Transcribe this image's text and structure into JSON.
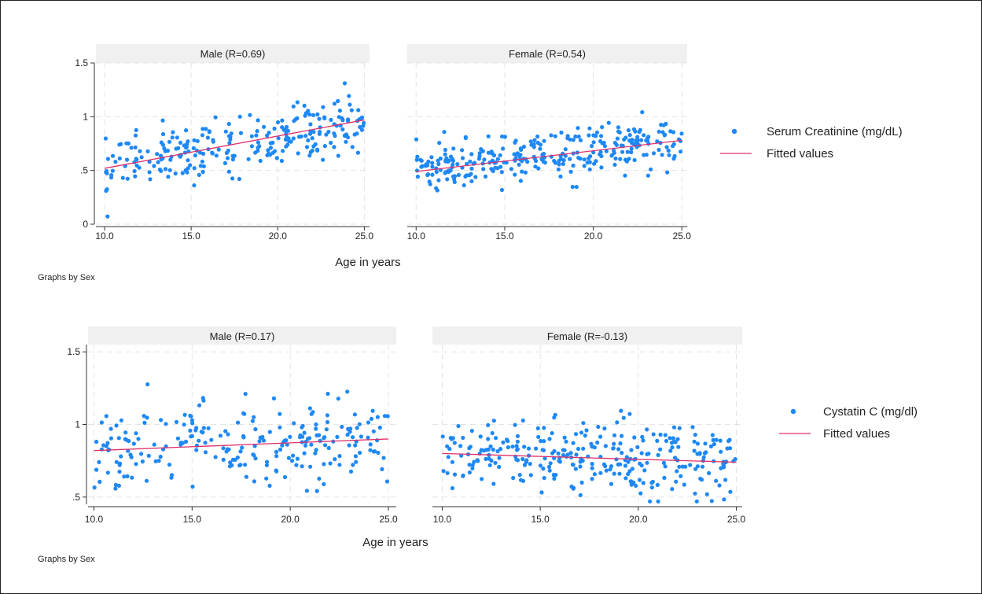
{
  "colors": {
    "points": "#1e88f5",
    "fit": "#e0306a",
    "strip": "#f0f0f0",
    "grid": "#e4e4e4"
  },
  "chart_data": [
    {
      "type": "scatter",
      "note": "Graphs by Sex",
      "xlabel": "Age in years",
      "ylim": [
        0,
        1.5
      ],
      "yticks": [
        0,
        0.5,
        1,
        1.5
      ],
      "ytick_labels": [
        "0",
        ".5",
        "1",
        "1.5"
      ],
      "xticks": [
        10,
        15,
        20,
        25
      ],
      "xtick_labels": [
        "10.0",
        "15.0",
        "20.0",
        "25.0"
      ],
      "legend": {
        "position": "right",
        "entries": [
          "Serum Creatinine (mg/dL)",
          "Fitted values"
        ]
      },
      "panels": [
        {
          "title": "Male (R=0.69)",
          "xlim": [
            9.5,
            25.3
          ],
          "fit": [
            [
              10,
              0.52
            ],
            [
              25,
              0.97
            ]
          ],
          "n": 260,
          "x_range": [
            10,
            25
          ],
          "y_center": [
            0.52,
            0.97
          ],
          "y_spread": 0.13
        },
        {
          "title": "Female (R=0.54)",
          "xlim": [
            9.5,
            25.3
          ],
          "fit": [
            [
              10,
              0.49
            ],
            [
              25,
              0.78
            ]
          ],
          "n": 300,
          "x_range": [
            10,
            25
          ],
          "y_center": [
            0.49,
            0.78
          ],
          "y_spread": 0.11
        }
      ]
    },
    {
      "type": "scatter",
      "note": "Graphs by Sex",
      "xlabel": "Age in years",
      "ylim": [
        0.45,
        1.55
      ],
      "yticks": [
        0.5,
        1,
        1.5
      ],
      "ytick_labels": [
        ".5",
        "1",
        "1.5"
      ],
      "xticks": [
        10,
        15,
        20,
        25
      ],
      "xtick_labels": [
        "10.0",
        "15.0",
        "20.0",
        "25.0"
      ],
      "legend": {
        "position": "right",
        "entries": [
          "Cystatin C (mg/dl)",
          "Fitted values"
        ]
      },
      "panels": [
        {
          "title": "Male (R=0.17)",
          "xlim": [
            9.7,
            25.4
          ],
          "fit": [
            [
              10,
              0.82
            ],
            [
              25,
              0.9
            ]
          ],
          "n": 240,
          "x_range": [
            10,
            25
          ],
          "y_center": [
            0.82,
            0.9
          ],
          "y_spread": 0.14
        },
        {
          "title": "Female (R=-0.13)",
          "xlim": [
            9.5,
            25.3
          ],
          "fit": [
            [
              10,
              0.8
            ],
            [
              25,
              0.74
            ]
          ],
          "n": 300,
          "x_range": [
            10,
            25
          ],
          "y_center": [
            0.8,
            0.74
          ],
          "y_spread": 0.13
        }
      ]
    }
  ]
}
